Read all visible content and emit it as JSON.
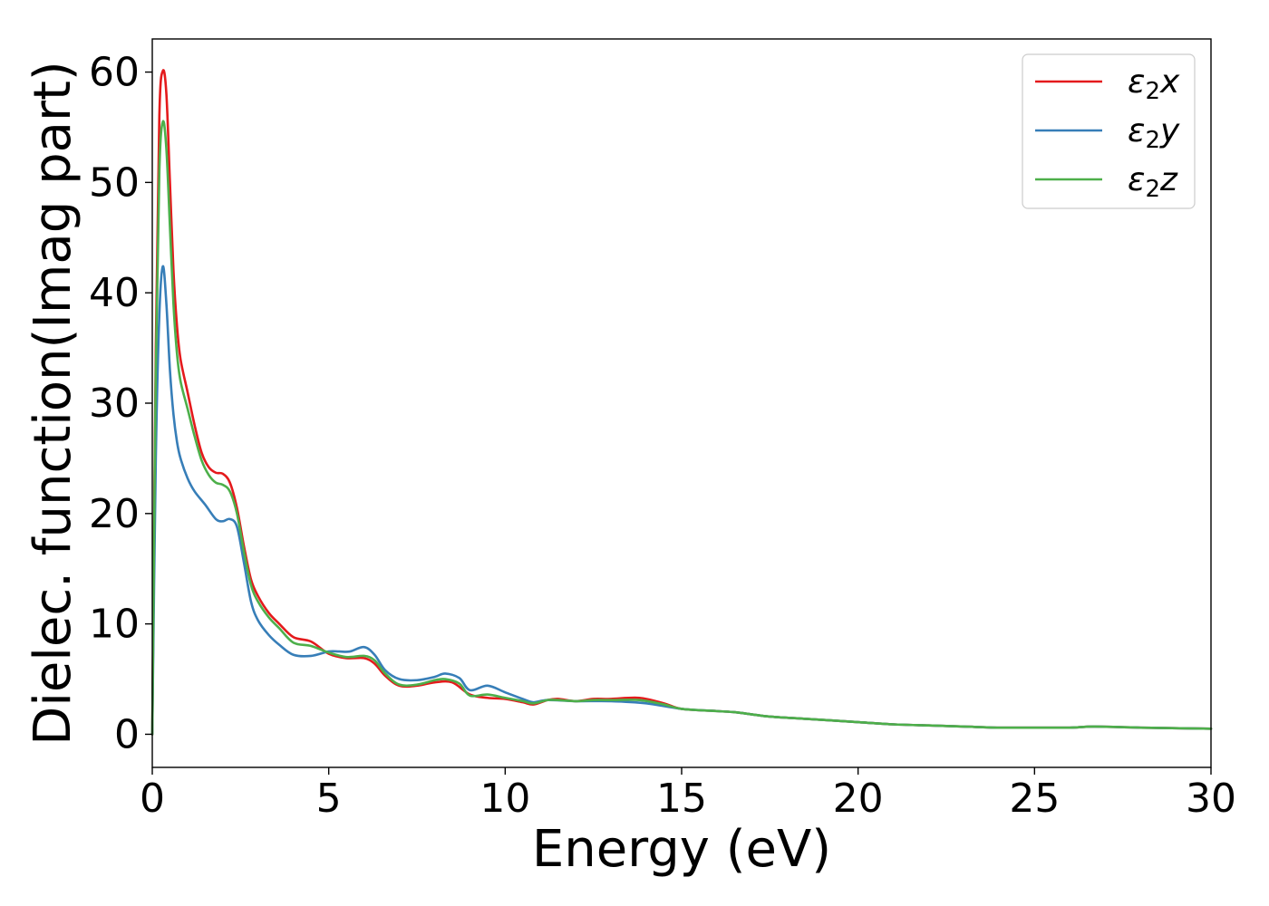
{
  "chart_data": {
    "type": "line",
    "xlabel": "Energy (eV)",
    "ylabel": "Dielec. function(Imag part)",
    "xlim": [
      0,
      30
    ],
    "ylim": [
      -3,
      63
    ],
    "xticks": [
      0,
      5,
      10,
      15,
      20,
      25,
      30
    ],
    "yticks": [
      0,
      10,
      20,
      30,
      40,
      50,
      60
    ],
    "grid": false,
    "legend_position": "top-right",
    "series": [
      {
        "name": "ε₂x",
        "legend_base": "ε",
        "legend_sub": "2",
        "legend_var": "x",
        "color": "#e41a1c",
        "points": [
          [
            0,
            0
          ],
          [
            0.1,
            35
          ],
          [
            0.2,
            56
          ],
          [
            0.3,
            60.1
          ],
          [
            0.4,
            58
          ],
          [
            0.5,
            50
          ],
          [
            0.6,
            42
          ],
          [
            0.7,
            37
          ],
          [
            0.8,
            34
          ],
          [
            1.0,
            31
          ],
          [
            1.2,
            28
          ],
          [
            1.4,
            25.5
          ],
          [
            1.6,
            24.2
          ],
          [
            1.8,
            23.7
          ],
          [
            2.0,
            23.6
          ],
          [
            2.2,
            22.8
          ],
          [
            2.4,
            20.5
          ],
          [
            2.6,
            17
          ],
          [
            2.8,
            14
          ],
          [
            3.0,
            12.5
          ],
          [
            3.3,
            11
          ],
          [
            3.6,
            10
          ],
          [
            4.0,
            8.8
          ],
          [
            4.5,
            8.4
          ],
          [
            5.0,
            7.3
          ],
          [
            5.5,
            6.9
          ],
          [
            6.0,
            6.9
          ],
          [
            6.3,
            6.4
          ],
          [
            6.6,
            5.3
          ],
          [
            7.0,
            4.4
          ],
          [
            7.5,
            4.4
          ],
          [
            8.0,
            4.7
          ],
          [
            8.5,
            4.7
          ],
          [
            9.0,
            3.6
          ],
          [
            9.5,
            3.3
          ],
          [
            10.0,
            3.2
          ],
          [
            10.5,
            2.9
          ],
          [
            10.8,
            2.7
          ],
          [
            11.2,
            3.1
          ],
          [
            11.5,
            3.2
          ],
          [
            12.0,
            3.0
          ],
          [
            12.5,
            3.2
          ],
          [
            13.0,
            3.2
          ],
          [
            13.8,
            3.3
          ],
          [
            14.5,
            2.8
          ],
          [
            15.0,
            2.3
          ],
          [
            16.0,
            2.1
          ],
          [
            16.5,
            2.0
          ],
          [
            17.0,
            1.8
          ],
          [
            17.5,
            1.6
          ],
          [
            18.5,
            1.4
          ],
          [
            20.0,
            1.1
          ],
          [
            21.0,
            0.9
          ],
          [
            22.0,
            0.8
          ],
          [
            23.0,
            0.7
          ],
          [
            24.0,
            0.6
          ],
          [
            25.0,
            0.6
          ],
          [
            26.0,
            0.6
          ],
          [
            26.7,
            0.7
          ],
          [
            28.0,
            0.6
          ],
          [
            30.0,
            0.5
          ]
        ]
      },
      {
        "name": "ε₂y",
        "legend_base": "ε",
        "legend_sub": "2",
        "legend_var": "y",
        "color": "#377eb8",
        "points": [
          [
            0,
            0
          ],
          [
            0.1,
            25
          ],
          [
            0.2,
            38
          ],
          [
            0.3,
            42.4
          ],
          [
            0.4,
            39
          ],
          [
            0.5,
            33
          ],
          [
            0.6,
            29
          ],
          [
            0.7,
            26.5
          ],
          [
            0.8,
            25
          ],
          [
            1.0,
            23.2
          ],
          [
            1.2,
            22
          ],
          [
            1.5,
            20.8
          ],
          [
            1.8,
            19.5
          ],
          [
            2.0,
            19.3
          ],
          [
            2.2,
            19.5
          ],
          [
            2.4,
            18.8
          ],
          [
            2.6,
            15.5
          ],
          [
            2.8,
            12
          ],
          [
            3.0,
            10.3
          ],
          [
            3.3,
            9
          ],
          [
            3.6,
            8.1
          ],
          [
            4.0,
            7.2
          ],
          [
            4.5,
            7.1
          ],
          [
            5.0,
            7.5
          ],
          [
            5.3,
            7.5
          ],
          [
            5.6,
            7.5
          ],
          [
            6.0,
            7.9
          ],
          [
            6.3,
            7.2
          ],
          [
            6.6,
            5.8
          ],
          [
            7.0,
            5.0
          ],
          [
            7.5,
            4.9
          ],
          [
            8.0,
            5.2
          ],
          [
            8.3,
            5.5
          ],
          [
            8.7,
            5.1
          ],
          [
            9.0,
            4.0
          ],
          [
            9.5,
            4.4
          ],
          [
            10.0,
            3.8
          ],
          [
            10.5,
            3.2
          ],
          [
            10.8,
            2.9
          ],
          [
            11.2,
            3.1
          ],
          [
            12.0,
            3.0
          ],
          [
            13.0,
            3.0
          ],
          [
            14.0,
            2.8
          ],
          [
            15.0,
            2.3
          ],
          [
            16.0,
            2.1
          ],
          [
            16.5,
            2.0
          ],
          [
            17.0,
            1.8
          ],
          [
            17.5,
            1.6
          ],
          [
            18.5,
            1.4
          ],
          [
            20.0,
            1.1
          ],
          [
            21.0,
            0.9
          ],
          [
            22.0,
            0.8
          ],
          [
            23.0,
            0.7
          ],
          [
            24.0,
            0.6
          ],
          [
            25.0,
            0.6
          ],
          [
            26.0,
            0.6
          ],
          [
            26.7,
            0.7
          ],
          [
            28.0,
            0.6
          ],
          [
            30.0,
            0.5
          ]
        ]
      },
      {
        "name": "ε₂z",
        "legend_base": "ε",
        "legend_sub": "2",
        "legend_var": "z",
        "color": "#4daf4a",
        "points": [
          [
            0,
            0
          ],
          [
            0.1,
            33
          ],
          [
            0.2,
            51
          ],
          [
            0.3,
            55.5
          ],
          [
            0.4,
            53
          ],
          [
            0.5,
            46
          ],
          [
            0.6,
            39
          ],
          [
            0.7,
            34.5
          ],
          [
            0.8,
            32
          ],
          [
            1.0,
            29.5
          ],
          [
            1.2,
            27
          ],
          [
            1.4,
            24.8
          ],
          [
            1.6,
            23.5
          ],
          [
            1.8,
            22.8
          ],
          [
            2.0,
            22.6
          ],
          [
            2.2,
            22
          ],
          [
            2.4,
            20
          ],
          [
            2.6,
            16.5
          ],
          [
            2.8,
            13.5
          ],
          [
            3.0,
            12
          ],
          [
            3.3,
            10.6
          ],
          [
            3.6,
            9.6
          ],
          [
            4.0,
            8.3
          ],
          [
            4.5,
            8.0
          ],
          [
            5.0,
            7.4
          ],
          [
            5.5,
            7.0
          ],
          [
            6.0,
            7.1
          ],
          [
            6.3,
            6.7
          ],
          [
            6.6,
            5.5
          ],
          [
            7.0,
            4.5
          ],
          [
            7.5,
            4.5
          ],
          [
            8.0,
            4.9
          ],
          [
            8.3,
            5.0
          ],
          [
            8.7,
            4.6
          ],
          [
            9.0,
            3.5
          ],
          [
            9.5,
            3.6
          ],
          [
            10.0,
            3.3
          ],
          [
            10.5,
            3.0
          ],
          [
            10.8,
            2.8
          ],
          [
            11.2,
            3.1
          ],
          [
            11.5,
            3.1
          ],
          [
            12.0,
            3.0
          ],
          [
            12.5,
            3.1
          ],
          [
            13.0,
            3.1
          ],
          [
            13.8,
            3.1
          ],
          [
            14.5,
            2.7
          ],
          [
            15.0,
            2.3
          ],
          [
            16.0,
            2.1
          ],
          [
            16.5,
            2.0
          ],
          [
            17.0,
            1.8
          ],
          [
            17.5,
            1.6
          ],
          [
            18.5,
            1.4
          ],
          [
            20.0,
            1.1
          ],
          [
            21.0,
            0.9
          ],
          [
            22.0,
            0.8
          ],
          [
            23.0,
            0.7
          ],
          [
            24.0,
            0.6
          ],
          [
            25.0,
            0.6
          ],
          [
            26.0,
            0.6
          ],
          [
            26.7,
            0.7
          ],
          [
            28.0,
            0.6
          ],
          [
            30.0,
            0.5
          ]
        ]
      }
    ]
  }
}
